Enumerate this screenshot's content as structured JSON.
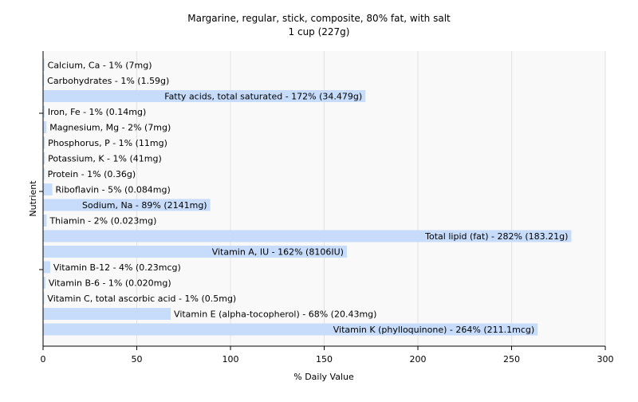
{
  "chart_data": {
    "type": "bar",
    "orientation": "horizontal",
    "title": "Margarine, regular, stick, composite, 80% fat, with salt",
    "subtitle": "1 cup (227g)",
    "xlabel": "% Daily Value",
    "ylabel": "Nutrient",
    "xlim": [
      0,
      300
    ],
    "xticks": [
      0,
      50,
      100,
      150,
      200,
      250,
      300
    ],
    "grid": "vertical",
    "bar_color": "#c6dcfa",
    "background": "#f9f9f9",
    "categories": [
      "Calcium, Ca",
      "Carbohydrates",
      "Fatty acids, total saturated",
      "Iron, Fe",
      "Magnesium, Mg",
      "Phosphorus, P",
      "Potassium, K",
      "Protein",
      "Riboflavin",
      "Sodium, Na",
      "Thiamin",
      "Total lipid (fat)",
      "Vitamin A, IU",
      "Vitamin B-12",
      "Vitamin B-6",
      "Vitamin C, total ascorbic acid",
      "Vitamin E (alpha-tocopherol)",
      "Vitamin K (phylloquinone)"
    ],
    "values": [
      0.7,
      0.5,
      172,
      0.8,
      1.8,
      0.9,
      0.9,
      0.7,
      4.9,
      89.2,
      1.9,
      281.9,
      162.1,
      3.8,
      1.2,
      0.6,
      68.1,
      263.9
    ],
    "labels": [
      "Calcium, Ca - 1% (7mg)",
      "Carbohydrates - 1% (1.59g)",
      "Fatty acids, total saturated - 172% (34.479g)",
      "Iron, Fe - 1% (0.14mg)",
      "Magnesium, Mg - 2% (7mg)",
      "Phosphorus, P - 1% (11mg)",
      "Potassium, K - 1% (41mg)",
      "Protein - 1% (0.36g)",
      "Riboflavin - 5% (0.084mg)",
      "Sodium, Na - 89% (2141mg)",
      "Thiamin - 2% (0.023mg)",
      "Total lipid (fat) - 282% (183.21g)",
      "Vitamin A, IU - 162% (8106IU)",
      "Vitamin B-12 - 4% (0.23mcg)",
      "Vitamin B-6 - 1% (0.020mg)",
      "Vitamin C, total ascorbic acid - 1% (0.5mg)",
      "Vitamin E (alpha-tocopherol) - 68% (20.43mg)",
      "Vitamin K (phylloquinone) - 264% (211.1mcg)"
    ]
  }
}
